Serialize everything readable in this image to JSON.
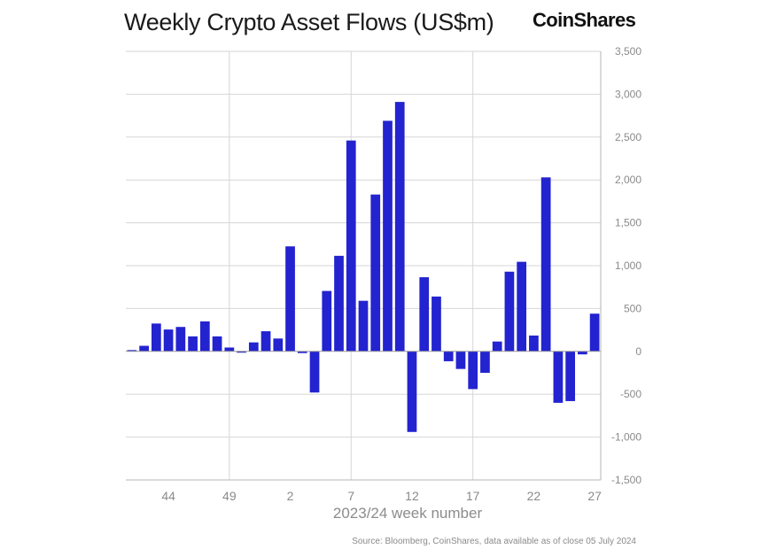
{
  "brand": {
    "name": "CoinShares"
  },
  "chart_data": {
    "type": "bar",
    "title": "Weekly Crypto Asset Flows (US$m)",
    "xlabel": "2023/24 week number",
    "ylabel": "",
    "source": "Source: Bloomberg, CoinShares, data available as of close 05 July 2024",
    "ylim": [
      -1500,
      3500
    ],
    "grid": true,
    "y_axis_side": "right",
    "bar_color": "#2323d0",
    "grid_color": "#d6d6d6",
    "y_ticks": [
      3500,
      3000,
      2500,
      2000,
      1500,
      1000,
      500,
      0,
      -500,
      -1000,
      -1500
    ],
    "y_tick_labels": [
      "3,500",
      "3,000",
      "2,500",
      "2,000",
      "1,500",
      "1,000",
      "500",
      "0",
      "-500",
      "-1,000",
      "-1,500"
    ],
    "x_tick_labels": [
      {
        "label": "44",
        "index": 3
      },
      {
        "label": "49",
        "index": 8
      },
      {
        "label": "2",
        "index": 13
      },
      {
        "label": "7",
        "index": 18
      },
      {
        "label": "12",
        "index": 23
      },
      {
        "label": "17",
        "index": 28
      },
      {
        "label": "22",
        "index": 33
      },
      {
        "label": "27",
        "index": 38
      }
    ],
    "vertical_grid_indices": [
      8,
      18,
      28
    ],
    "categories": [
      "41",
      "42",
      "43",
      "44",
      "45",
      "46",
      "47",
      "48",
      "49",
      "50",
      "51",
      "52",
      "1",
      "2",
      "3",
      "4",
      "5",
      "6",
      "7",
      "8",
      "9",
      "10",
      "11",
      "12",
      "13",
      "14",
      "15",
      "16",
      "17",
      "18",
      "19",
      "20",
      "21",
      "22",
      "23",
      "24",
      "25",
      "26",
      "27"
    ],
    "values": [
      15,
      65,
      325,
      255,
      285,
      175,
      350,
      175,
      45,
      -15,
      105,
      235,
      150,
      1225,
      -20,
      -480,
      705,
      1115,
      2460,
      590,
      1830,
      2690,
      2910,
      -940,
      865,
      640,
      -115,
      -205,
      -440,
      -250,
      115,
      930,
      1045,
      185,
      2030,
      -600,
      -580,
      -35,
      440
    ]
  }
}
